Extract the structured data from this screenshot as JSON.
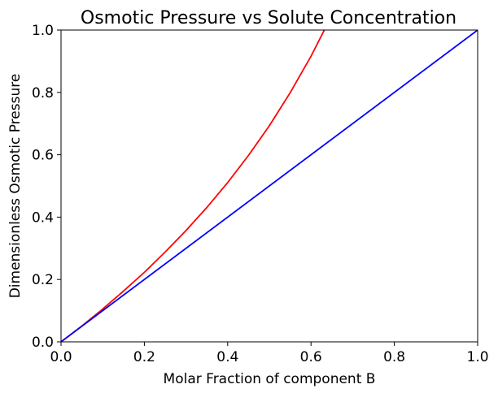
{
  "chart_data": {
    "type": "line",
    "title": "Osmotic Pressure vs Solute Concentration",
    "xlabel": "Molar Fraction of component B",
    "ylabel": "Dimensionless Osmotic Pressure",
    "xlim": [
      0.0,
      1.0
    ],
    "ylim": [
      0.0,
      1.0
    ],
    "xticks": [
      "0.0",
      "0.2",
      "0.4",
      "0.6",
      "0.8",
      "1.0"
    ],
    "yticks": [
      "0.0",
      "0.2",
      "0.4",
      "0.6",
      "0.8",
      "1.0"
    ],
    "grid": false,
    "series": [
      {
        "color": "#ff0000",
        "x": [
          0.0,
          0.05,
          0.1,
          0.15,
          0.2,
          0.25,
          0.3,
          0.35,
          0.4,
          0.45,
          0.5,
          0.55,
          0.6,
          0.632
        ],
        "y": [
          0.0,
          0.051,
          0.105,
          0.163,
          0.223,
          0.288,
          0.357,
          0.431,
          0.511,
          0.598,
          0.693,
          0.799,
          0.916,
          1.0
        ]
      },
      {
        "color": "#0000ff",
        "x": [
          0.0,
          1.0
        ],
        "y": [
          0.0,
          1.0
        ]
      }
    ]
  }
}
